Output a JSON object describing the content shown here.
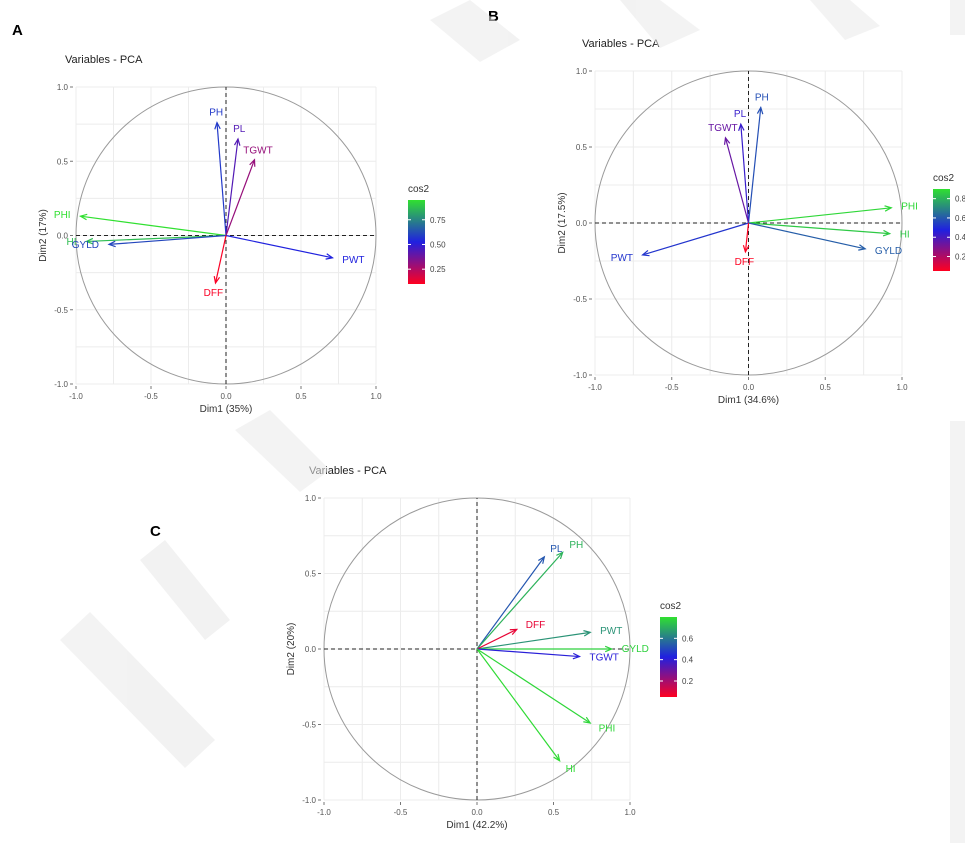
{
  "panel_labels": [
    "A",
    "B",
    "C"
  ],
  "chart_data": [
    {
      "type": "scatter",
      "panel": "A",
      "title": "Variables - PCA",
      "xlabel": "Dim1 (35%)",
      "ylabel": "Dim2 (17%)",
      "xlim": [
        -1.0,
        1.0
      ],
      "ylim": [
        -1.0,
        1.0
      ],
      "xticks": [
        -1.0,
        -0.5,
        0.0,
        0.5,
        1.0
      ],
      "yticks": [
        -1.0,
        -0.5,
        0.0,
        0.5,
        1.0
      ],
      "grid": true,
      "legend": {
        "title": "cos2",
        "ticks": [
          0.25,
          0.5,
          0.75
        ],
        "tick_labels": [
          "0.25",
          "0.50",
          "0.75"
        ],
        "range": [
          0.1,
          0.95
        ],
        "placement": "right"
      },
      "colors": {
        "low": "#ff0020",
        "mid": "#2020e0",
        "high": "#30e030"
      },
      "variables": [
        {
          "name": "PH",
          "x": -0.06,
          "y": 0.76,
          "cos2": 0.58
        },
        {
          "name": "PL",
          "x": 0.08,
          "y": 0.65,
          "cos2": 0.43
        },
        {
          "name": "TGWT",
          "x": 0.19,
          "y": 0.51,
          "cos2": 0.3
        },
        {
          "name": "PHI",
          "x": -0.97,
          "y": 0.13,
          "cos2": 0.95
        },
        {
          "name": "HI",
          "x": -0.93,
          "y": -0.04,
          "cos2": 0.87
        },
        {
          "name": "GYLD",
          "x": -0.78,
          "y": -0.06,
          "cos2": 0.61
        },
        {
          "name": "PWT",
          "x": 0.71,
          "y": -0.15,
          "cos2": 0.53
        },
        {
          "name": "DFF",
          "x": -0.07,
          "y": -0.32,
          "cos2": 0.11
        }
      ]
    },
    {
      "type": "scatter",
      "panel": "B",
      "title": "Variables - PCA",
      "xlabel": "Dim1 (34.6%)",
      "ylabel": "Dim2 (17.5%)",
      "xlim": [
        -1.0,
        1.0
      ],
      "ylim": [
        -1.0,
        1.0
      ],
      "xticks": [
        -1.0,
        -0.5,
        0.0,
        0.5,
        1.0
      ],
      "yticks": [
        -1.0,
        -0.5,
        0.0,
        0.5,
        1.0
      ],
      "grid": true,
      "legend": {
        "title": "cos2",
        "ticks": [
          0.2,
          0.4,
          0.6,
          0.8
        ],
        "tick_labels": [
          "0.2",
          "0.4",
          "0.6",
          "0.8"
        ],
        "range": [
          0.05,
          0.9
        ],
        "placement": "right"
      },
      "colors": {
        "low": "#ff0020",
        "mid": "#2020e0",
        "high": "#30e030"
      },
      "variables": [
        {
          "name": "PH",
          "x": 0.08,
          "y": 0.76,
          "cos2": 0.58
        },
        {
          "name": "PL",
          "x": -0.05,
          "y": 0.65,
          "cos2": 0.43
        },
        {
          "name": "TGWT",
          "x": -0.15,
          "y": 0.56,
          "cos2": 0.34
        },
        {
          "name": "PHI",
          "x": 0.93,
          "y": 0.1,
          "cos2": 0.88
        },
        {
          "name": "HI",
          "x": 0.92,
          "y": -0.07,
          "cos2": 0.85
        },
        {
          "name": "GYLD",
          "x": 0.76,
          "y": -0.17,
          "cos2": 0.61
        },
        {
          "name": "PWT",
          "x": -0.69,
          "y": -0.21,
          "cos2": 0.52
        },
        {
          "name": "DFF",
          "x": -0.02,
          "y": -0.19,
          "cos2": 0.04
        }
      ]
    },
    {
      "type": "scatter",
      "panel": "C",
      "title": "Variables - PCA",
      "xlabel": "Dim1 (42.2%)",
      "ylabel": "Dim2 (20%)",
      "xlim": [
        -1.0,
        1.0
      ],
      "ylim": [
        -1.0,
        1.0
      ],
      "xticks": [
        -1.0,
        -0.5,
        0.0,
        0.5,
        1.0
      ],
      "yticks": [
        -1.0,
        -0.5,
        0.0,
        0.5,
        1.0
      ],
      "grid": true,
      "legend": {
        "title": "cos2",
        "ticks": [
          0.2,
          0.4,
          0.6
        ],
        "tick_labels": [
          "0.2",
          "0.4",
          "0.6"
        ],
        "range": [
          0.05,
          0.8
        ],
        "placement": "right"
      },
      "colors": {
        "low": "#ff0020",
        "mid": "#2020e0",
        "high": "#30e030"
      },
      "variables": [
        {
          "name": "PL",
          "x": 0.44,
          "y": 0.61,
          "cos2": 0.53
        },
        {
          "name": "PH",
          "x": 0.56,
          "y": 0.64,
          "cos2": 0.71
        },
        {
          "name": "PWT",
          "x": 0.74,
          "y": 0.11,
          "cos2": 0.65
        },
        {
          "name": "GYLD",
          "x": 0.88,
          "y": 0.0,
          "cos2": 0.77
        },
        {
          "name": "DFF",
          "x": 0.26,
          "y": 0.13,
          "cos2": 0.09
        },
        {
          "name": "TGWT",
          "x": 0.67,
          "y": -0.05,
          "cos2": 0.41
        },
        {
          "name": "PHI",
          "x": 0.74,
          "y": -0.49,
          "cos2": 0.78
        },
        {
          "name": "HI",
          "x": 0.54,
          "y": -0.74,
          "cos2": 0.79
        }
      ]
    }
  ]
}
